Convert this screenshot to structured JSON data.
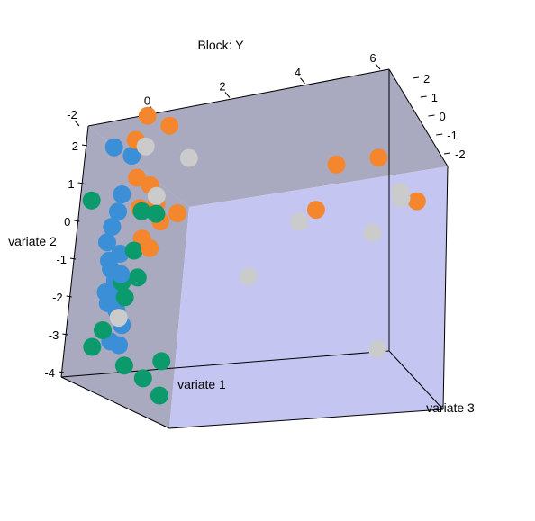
{
  "chart_data": {
    "type": "scatter",
    "projection": "3d",
    "title": "Block: Y",
    "xlabel": "variate 1",
    "ylabel": "variate 2",
    "zlabel": "variate 3",
    "xlim": [
      -2,
      6
    ],
    "ylim": [
      -4,
      3
    ],
    "zlim": [
      -2.5,
      2.5
    ],
    "x_ticks": [
      "-2",
      "0",
      "2",
      "4",
      "6"
    ],
    "y_ticks": [
      "2",
      "1",
      "0",
      "-1",
      "-2",
      "-3",
      "-4"
    ],
    "z_ticks": [
      "2",
      "1",
      "0",
      "-1",
      "-2"
    ],
    "box_face_colors": {
      "back": "#a9a9c0",
      "side": "#c5c5f2"
    },
    "grid": false,
    "legend": "none",
    "series": [
      {
        "color": "#3a8fd6",
        "points": [
          [
            -1.6,
            2.2,
            -1.7
          ],
          [
            -1.0,
            1.9,
            -1.9
          ],
          [
            -1.4,
            0.5,
            -1.8
          ],
          [
            -1.5,
            0.1,
            -2.0
          ],
          [
            -1.6,
            -0.3,
            -2.1
          ],
          [
            -1.3,
            -0.6,
            -1.8
          ],
          [
            -1.5,
            -1.0,
            -2.0
          ],
          [
            -1.4,
            -1.3,
            -1.9
          ],
          [
            -1.6,
            -1.6,
            -2.1
          ],
          [
            -1.2,
            -1.7,
            -2.0
          ],
          [
            -1.5,
            -1.9,
            -2.2
          ],
          [
            -1.3,
            -2.1,
            -2.0
          ],
          [
            -1.1,
            -2.5,
            -2.1
          ],
          [
            -1.4,
            -2.9,
            -2.2
          ],
          [
            -1.2,
            -3.0,
            -2.0
          ],
          [
            -1.5,
            -0.8,
            -2.2
          ],
          [
            -1.1,
            -1.2,
            -2.3
          ],
          [
            -1.2,
            0.9,
            -2.1
          ]
        ]
      },
      {
        "color": "#f4872e",
        "points": [
          [
            -0.6,
            2.9,
            -1.8
          ],
          [
            0.0,
            2.6,
            -1.6
          ],
          [
            -0.9,
            2.3,
            -1.9
          ],
          [
            -0.8,
            1.3,
            -2.0
          ],
          [
            -0.5,
            1.1,
            -1.7
          ],
          [
            -0.7,
            0.5,
            -2.0
          ],
          [
            -0.3,
            0.6,
            -1.7
          ],
          [
            0.3,
            0.3,
            -1.6
          ],
          [
            -0.1,
            0.1,
            -1.9
          ],
          [
            -0.6,
            -0.3,
            -2.0
          ],
          [
            -0.3,
            -0.6,
            -2.2
          ],
          [
            5.0,
            1.6,
            2.2
          ],
          [
            4.4,
            1.3,
            0.2
          ],
          [
            3.8,
            0.2,
            0.3
          ],
          [
            6.3,
            0.3,
            1.8
          ]
        ]
      },
      {
        "color": "#0b9a6b",
        "points": [
          [
            -2.0,
            0.8,
            -2.4
          ],
          [
            -0.6,
            0.4,
            -2.1
          ],
          [
            -0.2,
            0.3,
            -2.0
          ],
          [
            -0.8,
            -0.6,
            -2.1
          ],
          [
            -1.1,
            -1.4,
            -2.2
          ],
          [
            -0.7,
            -1.3,
            -2.0
          ],
          [
            -1.0,
            -1.8,
            -2.2
          ],
          [
            -1.6,
            -2.6,
            -2.3
          ],
          [
            -1.9,
            -3.0,
            -2.3
          ],
          [
            -0.9,
            -3.6,
            -2.4
          ],
          [
            0.2,
            -3.6,
            -2.4
          ],
          [
            -0.3,
            -4.0,
            -2.5
          ],
          [
            0.2,
            -4.5,
            -2.5
          ]
        ]
      },
      {
        "color": "#cbcbcb",
        "points": [
          [
            -0.6,
            2.1,
            -1.9
          ],
          [
            0.6,
            1.7,
            -1.6
          ],
          [
            -0.3,
            0.8,
            -1.7
          ],
          [
            5.8,
            0.6,
            1.8
          ],
          [
            5.9,
            0.4,
            1.6
          ],
          [
            3.4,
            -0.1,
            0.0
          ],
          [
            5.3,
            -0.5,
            0.9
          ],
          [
            2.3,
            -1.5,
            -1.1
          ],
          [
            -1.2,
            -2.3,
            -2.1
          ],
          [
            5.7,
            -3.6,
            0.4
          ]
        ]
      }
    ]
  }
}
